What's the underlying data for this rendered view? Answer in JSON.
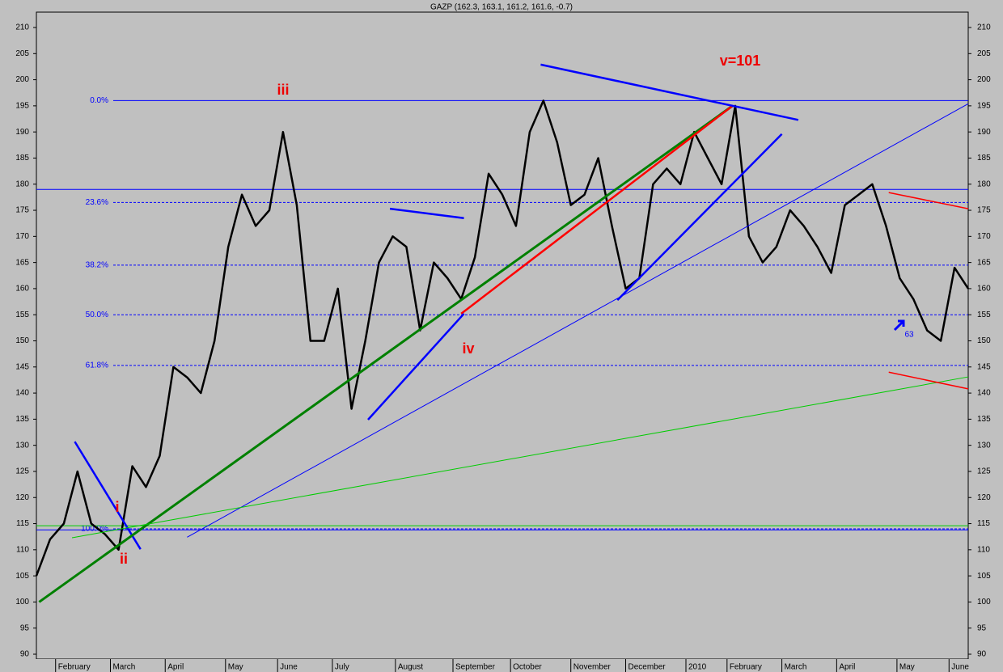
{
  "chart_data": {
    "type": "line",
    "title": "GAZP (162.3, 163.1, 161.2, 161.6, -0.7)",
    "x": [
      0,
      5,
      10,
      15,
      20,
      25,
      30,
      35,
      40,
      45,
      50,
      55,
      60,
      65,
      70,
      75,
      80,
      85,
      90,
      95,
      100,
      105,
      110,
      115,
      120,
      125,
      130,
      135,
      140,
      145,
      150,
      155,
      160,
      165,
      170,
      175,
      180,
      185,
      190,
      195,
      200,
      205,
      210,
      215,
      220,
      225,
      230,
      235,
      240,
      245,
      250,
      255,
      260,
      265,
      270,
      275,
      280,
      285,
      290,
      295,
      300,
      305,
      310,
      315,
      320,
      325,
      330,
      335,
      340
    ],
    "series": [
      {
        "color": "#000000",
        "values": [
          105,
          112,
          115,
          125,
          115,
          113,
          110,
          126,
          122,
          128,
          145,
          143,
          140,
          150,
          168,
          178,
          172,
          175,
          190,
          176,
          150,
          150,
          160,
          137,
          150,
          165,
          170,
          168,
          152,
          165,
          162,
          158,
          166,
          182,
          178,
          172,
          190,
          196,
          188,
          176,
          178,
          185,
          172,
          160,
          162,
          180,
          183,
          180,
          190,
          185,
          180,
          195,
          170,
          165,
          168,
          175,
          172,
          168,
          163,
          176,
          178,
          180,
          172,
          162,
          158,
          152,
          150,
          164,
          160
        ]
      }
    ],
    "xlim": [
      0,
      340
    ],
    "ylim": [
      90,
      210
    ],
    "xticks": [
      {
        "value": 7,
        "label": "February"
      },
      {
        "value": 27,
        "label": "March"
      },
      {
        "value": 47,
        "label": "April"
      },
      {
        "value": 69,
        "label": "May"
      },
      {
        "value": 88,
        "label": "June"
      },
      {
        "value": 108,
        "label": "July"
      },
      {
        "value": 131,
        "label": "August"
      },
      {
        "value": 152,
        "label": "September"
      },
      {
        "value": 173,
        "label": "October"
      },
      {
        "value": 195,
        "label": "November"
      },
      {
        "value": 215,
        "label": "December"
      },
      {
        "value": 237,
        "label": "2010"
      },
      {
        "value": 252,
        "label": "February"
      },
      {
        "value": 272,
        "label": "March"
      },
      {
        "value": 292,
        "label": "April"
      },
      {
        "value": 314,
        "label": "May"
      },
      {
        "value": 333,
        "label": "June"
      }
    ],
    "yticks": [
      90,
      95,
      100,
      105,
      110,
      115,
      120,
      125,
      130,
      135,
      140,
      145,
      150,
      155,
      160,
      165,
      170,
      175,
      180,
      185,
      190,
      195,
      200,
      205,
      210
    ],
    "fib_levels": [
      {
        "value": 196,
        "label": "0.0%"
      },
      {
        "value": 176.5,
        "label": "23.6%"
      },
      {
        "value": 164.5,
        "label": "38.2%"
      },
      {
        "value": 155,
        "label": "50.0%"
      },
      {
        "value": 145.3,
        "label": "61.8%"
      },
      {
        "value": 114,
        "label": "100.0%"
      }
    ],
    "hlines": [
      {
        "value": 179,
        "color": "#0000ff"
      },
      {
        "value": 113.8,
        "color": "#0000ff"
      },
      {
        "value": 114.6,
        "color": "#00cc00"
      }
    ],
    "trendlines": [
      {
        "color": "#0000ff",
        "width": 2.5,
        "x": [
          14,
          38
        ],
        "y": [
          130.7,
          110.1
        ]
      },
      {
        "color": "#008000",
        "width": 3,
        "x": [
          1,
          254
        ],
        "y": [
          100,
          195
        ]
      },
      {
        "color": "#ff0000",
        "width": 2.5,
        "x": [
          155,
          254
        ],
        "y": [
          155.2,
          195
        ]
      },
      {
        "color": "#0000ff",
        "width": 2.5,
        "x": [
          129,
          156
        ],
        "y": [
          175.3,
          173.5
        ]
      },
      {
        "color": "#0000ff",
        "width": 2.5,
        "x": [
          121,
          156
        ],
        "y": [
          134.9,
          155.2
        ]
      },
      {
        "color": "#0000ff",
        "width": 2.5,
        "x": [
          184,
          278
        ],
        "y": [
          202.9,
          192.3
        ]
      },
      {
        "color": "#0000ff",
        "width": 2.5,
        "x": [
          212,
          272
        ],
        "y": [
          157.8,
          189.6
        ]
      },
      {
        "color": "#0000ff",
        "width": 1,
        "x": [
          55,
          340
        ],
        "y": [
          112.4,
          195.4
        ]
      },
      {
        "color": "#00cc00",
        "width": 1,
        "x": [
          13,
          340
        ],
        "y": [
          112.3,
          143.1
        ]
      },
      {
        "color": "#ff0000",
        "width": 1.5,
        "x": [
          311,
          340
        ],
        "y": [
          178.4,
          175.3
        ]
      },
      {
        "color": "#ff0000",
        "width": 1.5,
        "x": [
          311,
          340
        ],
        "y": [
          144,
          140.8
        ]
      }
    ],
    "annotations": {
      "iii": "iii",
      "ii": "ii",
      "i": "i",
      "iv": "iv",
      "v": "v=101",
      "n63": "63"
    }
  }
}
